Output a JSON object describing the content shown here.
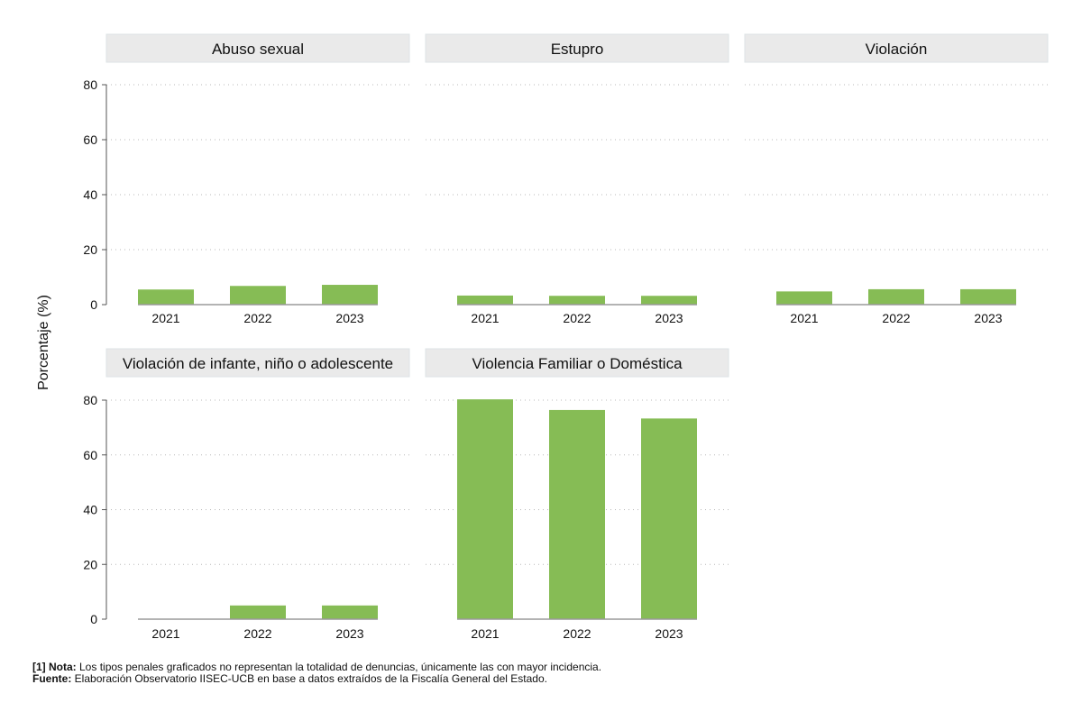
{
  "chart_data": {
    "type": "bar",
    "layout": "small-multiples",
    "ylabel": "Porcentaje (%)",
    "ylim": [
      0,
      80
    ],
    "yticks": [
      0,
      20,
      40,
      60,
      80
    ],
    "categories": [
      "2021",
      "2022",
      "2023"
    ],
    "bar_color": "#86bc55",
    "grid": "horizontal-dotted",
    "panels": [
      {
        "title": "Abuso sexual",
        "values": [
          5.5,
          6.8,
          7.2
        ]
      },
      {
        "title": "Estupro",
        "values": [
          3.3,
          3.2,
          3.2
        ]
      },
      {
        "title": "Violación",
        "values": [
          4.8,
          5.6,
          5.6
        ]
      },
      {
        "title": "Violación de infante, niño o adolescente",
        "values": [
          0,
          5.0,
          5.0
        ]
      },
      {
        "title": "Violencia Familiar o Doméstica",
        "values": [
          80.3,
          76.4,
          73.3
        ]
      }
    ]
  },
  "footnote": {
    "note_label": "[1] Nota:",
    "note_text": " Los tipos penales graficados no representan la totalidad de denuncias, únicamente las con mayor incidencia.",
    "source_label": "Fuente:",
    "source_text": " Elaboración Observatorio IISEC-UCB en base a datos extraídos de la Fiscalía General del Estado."
  }
}
